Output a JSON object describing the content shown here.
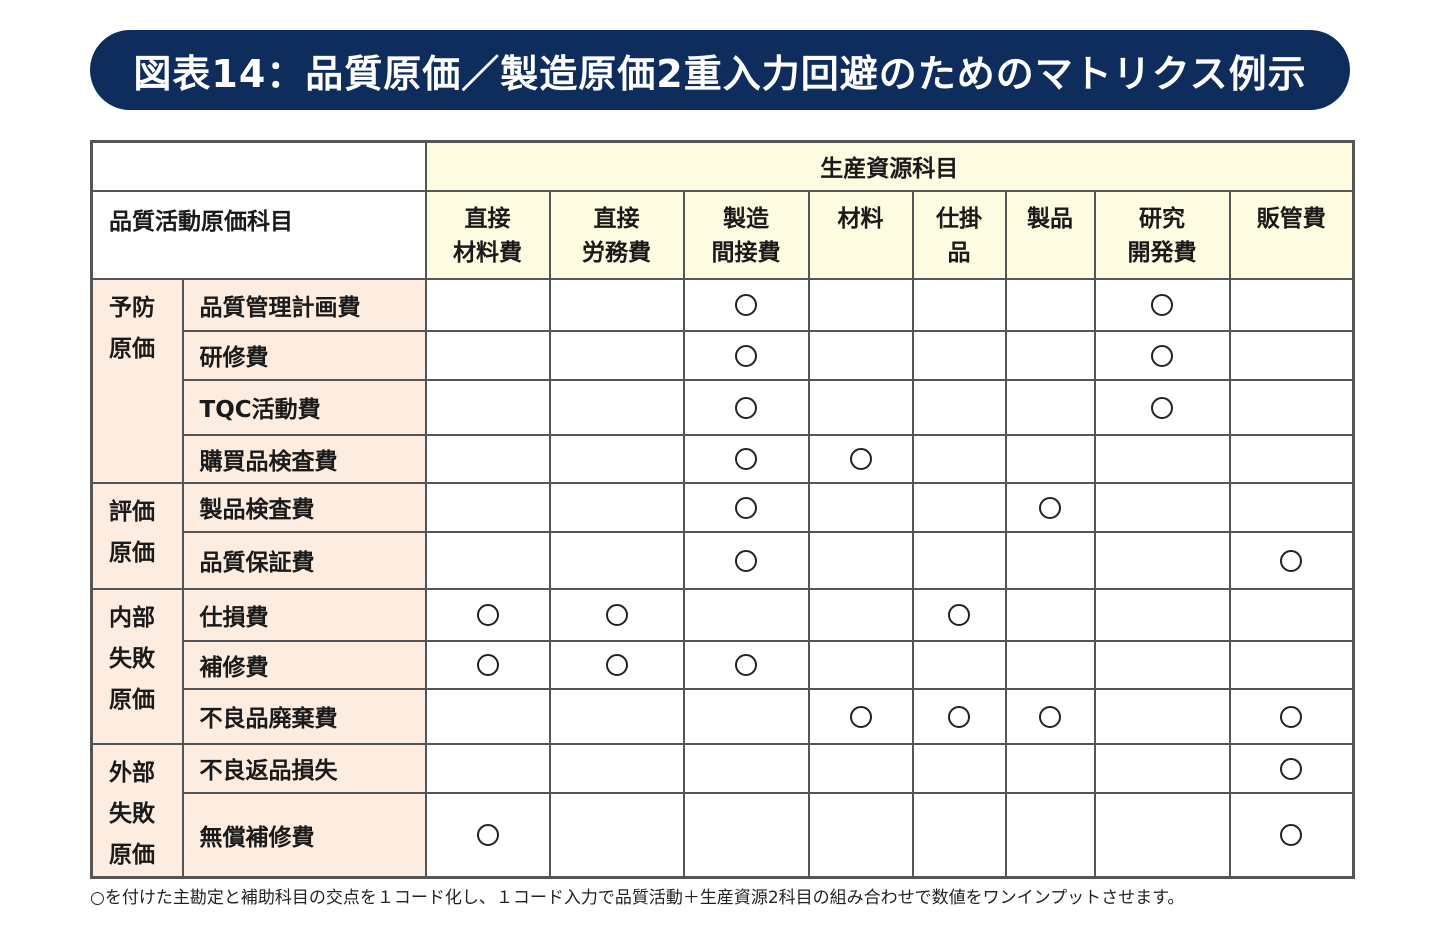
{
  "title": "図表14：品質原価／製造原価2重入力回避のためのマトリクス例示",
  "table": {
    "group_header": "生産資源科目",
    "row_header": "品質活動原価科目",
    "columns": [
      "直接\n材料費",
      "直接\n労務費",
      "製造\n間接費",
      "材料",
      "仕掛\n品",
      "製品",
      "研究\n開発費",
      "販管費"
    ],
    "mark_symbol": "circle",
    "categories": [
      {
        "label": "予防\n原価",
        "rows": [
          {
            "item": "品質管理計画費",
            "marks": [
              false,
              false,
              true,
              false,
              false,
              false,
              true,
              false
            ]
          },
          {
            "item": "研修費",
            "marks": [
              false,
              false,
              true,
              false,
              false,
              false,
              true,
              false
            ]
          },
          {
            "item": "TQC活動費",
            "marks": [
              false,
              false,
              true,
              false,
              false,
              false,
              true,
              false
            ]
          },
          {
            "item": "購買品検査費",
            "marks": [
              false,
              false,
              true,
              true,
              false,
              false,
              false,
              false
            ]
          }
        ]
      },
      {
        "label": "評価\n原価",
        "rows": [
          {
            "item": "製品検査費",
            "marks": [
              false,
              false,
              true,
              false,
              false,
              true,
              false,
              false
            ]
          },
          {
            "item": "品質保証費",
            "marks": [
              false,
              false,
              true,
              false,
              false,
              false,
              false,
              true
            ]
          }
        ]
      },
      {
        "label": "内部\n失敗\n原価",
        "rows": [
          {
            "item": "仕損費",
            "marks": [
              true,
              true,
              false,
              false,
              true,
              false,
              false,
              false
            ]
          },
          {
            "item": "補修費",
            "marks": [
              true,
              true,
              true,
              false,
              false,
              false,
              false,
              false
            ]
          },
          {
            "item": "不良品廃棄費",
            "marks": [
              false,
              false,
              false,
              true,
              true,
              true,
              false,
              true
            ]
          }
        ]
      },
      {
        "label": "外部\n失敗\n原価",
        "rows": [
          {
            "item": "不良返品損失",
            "marks": [
              false,
              false,
              false,
              false,
              false,
              false,
              false,
              true
            ]
          },
          {
            "item": "無償補修費",
            "marks": [
              true,
              false,
              false,
              false,
              false,
              false,
              false,
              true
            ]
          }
        ]
      }
    ]
  },
  "footnote": "○を付けた主勘定と補助科目の交点を１コード化し、１コード入力で品質活動＋生産資源2科目の組み合わせで数値をワンインプットさせます。",
  "colors": {
    "title_bg": "#0f2d5c",
    "header_bg": "#fdfbe0",
    "category_bg": "#fdece0",
    "border": "#555555"
  }
}
